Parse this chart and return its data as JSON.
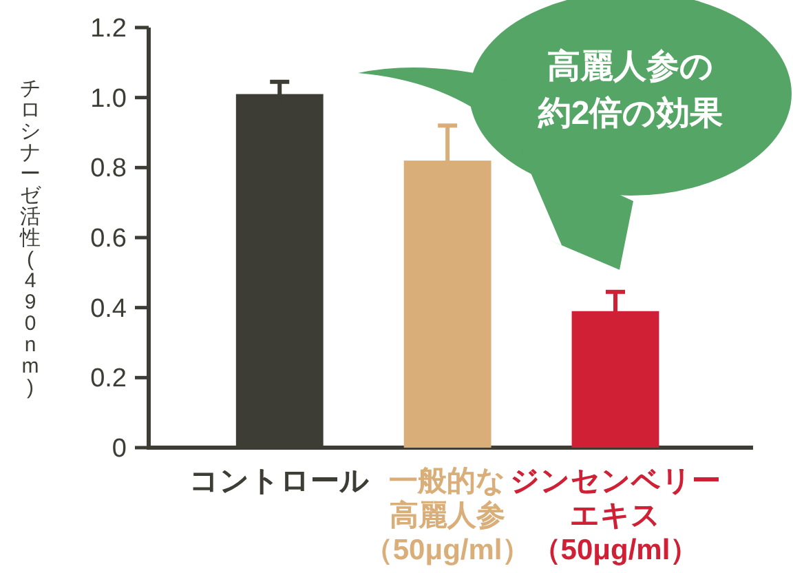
{
  "chart_data": {
    "type": "bar",
    "ylabel": "チロシナーゼ活性(490nm)",
    "categories": [
      "コントロール",
      "一般的な高麗人参（50μg/ml）",
      "ジンセンベリーエキス（50μg/ml）"
    ],
    "values": [
      1.01,
      0.82,
      0.39
    ],
    "errors": [
      0.035,
      0.1,
      0.055
    ],
    "colors": [
      "#3d3d36",
      "#d9ae78",
      "#cf2035"
    ],
    "ylim": [
      0,
      1.2
    ],
    "yticks": [
      0,
      0.2,
      0.4,
      0.6,
      0.8,
      {
        "value": 1,
        "label": "1.0"
      },
      1.2
    ],
    "annotations": [
      "高麗人参の約2倍の効果"
    ],
    "grid": false
  }
}
